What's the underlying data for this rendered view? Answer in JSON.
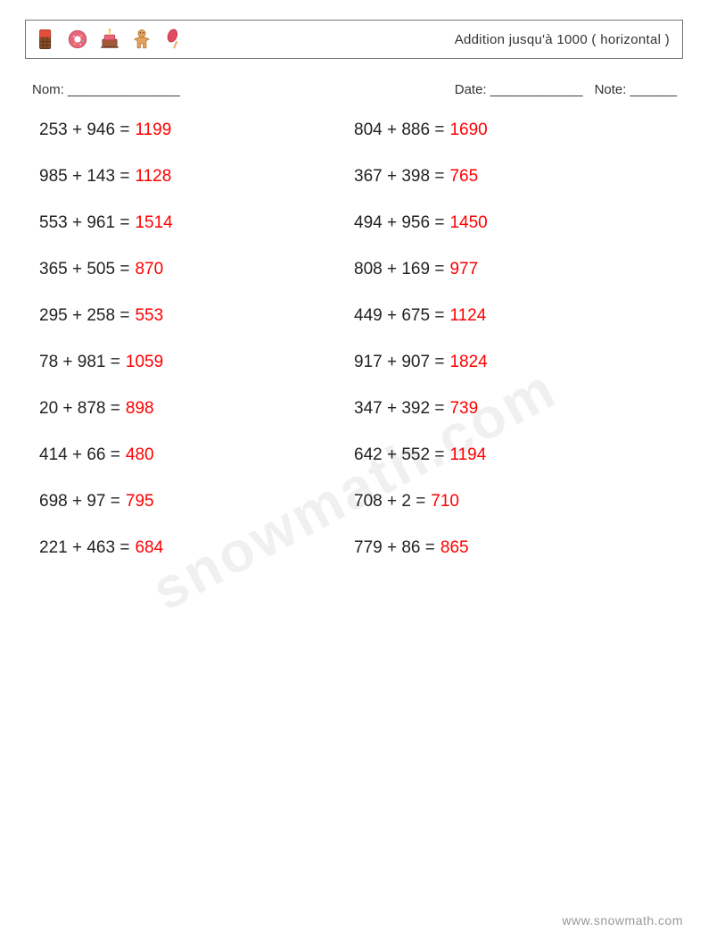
{
  "header": {
    "title": "Addition jusqu'à 1000 ( horizontal )",
    "icons": [
      {
        "name": "chocolate-bar-icon"
      },
      {
        "name": "donut-icon"
      },
      {
        "name": "birthday-cake-icon"
      },
      {
        "name": "gingerbread-man-icon"
      },
      {
        "name": "popsicle-icon"
      }
    ]
  },
  "info": {
    "name_label": "Nom:",
    "date_label": "Date:",
    "note_label": "Note:"
  },
  "colors": {
    "answer": "#ff0000",
    "text": "#222222",
    "border": "#777777",
    "footer": "#999999",
    "watermark": "rgba(0,0,0,0.06)"
  },
  "layout": {
    "columns": 2,
    "rows": 10,
    "font_size_problems": 19,
    "row_gap": 30
  },
  "problems": {
    "left": [
      {
        "a": 253,
        "b": 946,
        "op": "+",
        "eq": "=",
        "ans": 1199
      },
      {
        "a": 985,
        "b": 143,
        "op": "+",
        "eq": "=",
        "ans": 1128
      },
      {
        "a": 553,
        "b": 961,
        "op": "+",
        "eq": "=",
        "ans": 1514
      },
      {
        "a": 365,
        "b": 505,
        "op": "+",
        "eq": "=",
        "ans": 870
      },
      {
        "a": 295,
        "b": 258,
        "op": "+",
        "eq": "=",
        "ans": 553
      },
      {
        "a": 78,
        "b": 981,
        "op": "+",
        "eq": "=",
        "ans": 1059
      },
      {
        "a": 20,
        "b": 878,
        "op": "+",
        "eq": "=",
        "ans": 898
      },
      {
        "a": 414,
        "b": 66,
        "op": "+",
        "eq": "=",
        "ans": 480
      },
      {
        "a": 698,
        "b": 97,
        "op": "+",
        "eq": "=",
        "ans": 795
      },
      {
        "a": 221,
        "b": 463,
        "op": "+",
        "eq": "=",
        "ans": 684
      }
    ],
    "right": [
      {
        "a": 804,
        "b": 886,
        "op": "+",
        "eq": "=",
        "ans": 1690
      },
      {
        "a": 367,
        "b": 398,
        "op": "+",
        "eq": "=",
        "ans": 765
      },
      {
        "a": 494,
        "b": 956,
        "op": "+",
        "eq": "=",
        "ans": 1450
      },
      {
        "a": 808,
        "b": 169,
        "op": "+",
        "eq": "=",
        "ans": 977
      },
      {
        "a": 449,
        "b": 675,
        "op": "+",
        "eq": "=",
        "ans": 1124
      },
      {
        "a": 917,
        "b": 907,
        "op": "+",
        "eq": "=",
        "ans": 1824
      },
      {
        "a": 347,
        "b": 392,
        "op": "+",
        "eq": "=",
        "ans": 739
      },
      {
        "a": 642,
        "b": 552,
        "op": "+",
        "eq": "=",
        "ans": 1194
      },
      {
        "a": 708,
        "b": 2,
        "op": "+",
        "eq": "=",
        "ans": 710
      },
      {
        "a": 779,
        "b": 86,
        "op": "+",
        "eq": "=",
        "ans": 865
      }
    ]
  },
  "watermark": "snowmath.com",
  "footer": "www.snowmath.com"
}
